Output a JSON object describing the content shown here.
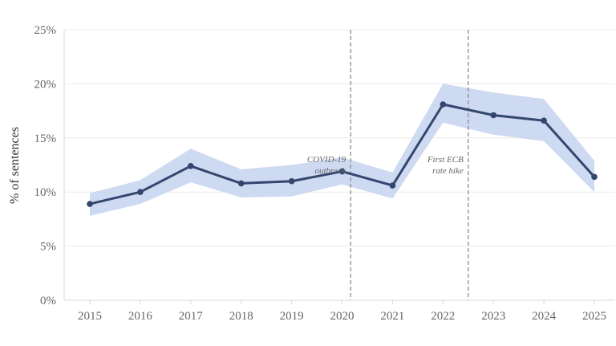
{
  "chart_data": {
    "type": "line",
    "x": [
      "2015",
      "2016",
      "2017",
      "2018",
      "2019",
      "2020",
      "2021",
      "2022",
      "2023",
      "2024",
      "2025"
    ],
    "series": [
      {
        "values": [
          8.9,
          10.0,
          12.4,
          10.8,
          11.0,
          11.9,
          10.6,
          18.1,
          17.1,
          16.6,
          11.4
        ],
        "lower": [
          7.8,
          8.9,
          10.9,
          9.5,
          9.6,
          10.7,
          9.4,
          16.4,
          15.3,
          14.7,
          10.0
        ],
        "upper": [
          9.9,
          11.1,
          14.0,
          12.1,
          12.5,
          13.2,
          11.8,
          20.0,
          19.2,
          18.6,
          12.9
        ]
      }
    ],
    "ylabel": "% of sentences",
    "xlabel": "",
    "ylim": [
      0,
      25
    ],
    "yticks": [
      "0%",
      "5%",
      "10%",
      "15%",
      "20%",
      "25%"
    ],
    "ytick_values": [
      0,
      5,
      10,
      15,
      20,
      25
    ],
    "grid": true,
    "colors": {
      "line": "#34466e",
      "band": "#c6d4ee",
      "grid": "#ececec",
      "axis": "#d9d9d9",
      "vline": "#8c8c8c"
    },
    "annotations": [
      {
        "x": 2020.17,
        "lines": [
          "COVID-19",
          "outbreak"
        ]
      },
      {
        "x": 2022.5,
        "lines": [
          "First ECB",
          "rate hike"
        ]
      }
    ]
  }
}
